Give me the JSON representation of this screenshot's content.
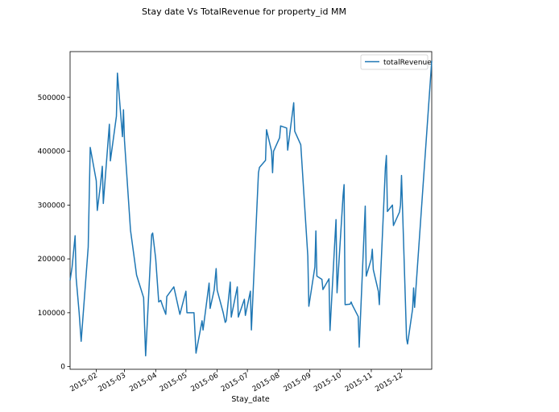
{
  "chart_data": {
    "type": "line",
    "title": "Stay date Vs TotalRevenue for property_id MM",
    "xlabel": "Stay_date",
    "ylabel": "",
    "legend": {
      "placement": "top-right",
      "entries": [
        "totalRevenue"
      ]
    },
    "grid": false,
    "xlim": [
      "2015-01-06",
      "2015-12-31"
    ],
    "ylim": [
      -5000,
      585000
    ],
    "x_tick_labels": [
      "2015-02",
      "2015-03",
      "2015-04",
      "2015-05",
      "2015-06",
      "2015-07",
      "2015-08",
      "2015-09",
      "2015-10",
      "2015-11",
      "2015-12"
    ],
    "y_tick_labels": [
      "0",
      "100000",
      "200000",
      "300000",
      "400000",
      "500000"
    ],
    "y_ticks": [
      0,
      100000,
      200000,
      300000,
      400000,
      500000
    ],
    "series": [
      {
        "name": "totalRevenue",
        "color": "#1f77b4",
        "points": [
          [
            "2015-01-06",
            160000
          ],
          [
            "2015-01-08",
            185000
          ],
          [
            "2015-01-11",
            243000
          ],
          [
            "2015-01-12",
            165000
          ],
          [
            "2015-01-15",
            100000
          ],
          [
            "2015-01-17",
            47000
          ],
          [
            "2015-01-24",
            222000
          ],
          [
            "2015-01-26",
            407000
          ],
          [
            "2015-02-01",
            345000
          ],
          [
            "2015-02-02",
            290000
          ],
          [
            "2015-02-05",
            335000
          ],
          [
            "2015-02-07",
            372000
          ],
          [
            "2015-02-08",
            303000
          ],
          [
            "2015-02-14",
            450000
          ],
          [
            "2015-02-15",
            382000
          ],
          [
            "2015-02-21",
            465000
          ],
          [
            "2015-02-22",
            545000
          ],
          [
            "2015-02-27",
            427000
          ],
          [
            "2015-02-28",
            477000
          ],
          [
            "2015-03-01",
            420000
          ],
          [
            "2015-03-07",
            253000
          ],
          [
            "2015-03-13",
            170000
          ],
          [
            "2015-03-20",
            128000
          ],
          [
            "2015-03-22",
            20000
          ],
          [
            "2015-03-28",
            245000
          ],
          [
            "2015-03-29",
            248000
          ],
          [
            "2015-04-01",
            200000
          ],
          [
            "2015-04-04",
            120000
          ],
          [
            "2015-04-06",
            123000
          ],
          [
            "2015-04-08",
            112000
          ],
          [
            "2015-04-11",
            97000
          ],
          [
            "2015-04-12",
            130000
          ],
          [
            "2015-04-19",
            148000
          ],
          [
            "2015-04-25",
            97000
          ],
          [
            "2015-05-01",
            140000
          ],
          [
            "2015-05-02",
            100000
          ],
          [
            "2015-05-09",
            100000
          ],
          [
            "2015-05-11",
            25000
          ],
          [
            "2015-05-17",
            85000
          ],
          [
            "2015-05-18",
            68000
          ],
          [
            "2015-05-24",
            155000
          ],
          [
            "2015-05-25",
            108000
          ],
          [
            "2015-05-29",
            142000
          ],
          [
            "2015-05-31",
            182000
          ],
          [
            "2015-06-01",
            142000
          ],
          [
            "2015-06-07",
            100000
          ],
          [
            "2015-06-09",
            82000
          ],
          [
            "2015-06-10",
            85000
          ],
          [
            "2015-06-14",
            157000
          ],
          [
            "2015-06-15",
            92000
          ],
          [
            "2015-06-21",
            148000
          ],
          [
            "2015-06-22",
            92000
          ],
          [
            "2015-06-28",
            125000
          ],
          [
            "2015-06-29",
            95000
          ],
          [
            "2015-07-04",
            140000
          ],
          [
            "2015-07-05",
            68000
          ],
          [
            "2015-07-12",
            360000
          ],
          [
            "2015-07-13",
            370000
          ],
          [
            "2015-07-19",
            383000
          ],
          [
            "2015-07-20",
            440000
          ],
          [
            "2015-07-25",
            400000
          ],
          [
            "2015-07-26",
            360000
          ],
          [
            "2015-07-27",
            400000
          ],
          [
            "2015-08-02",
            425000
          ],
          [
            "2015-08-03",
            447000
          ],
          [
            "2015-08-09",
            443000
          ],
          [
            "2015-08-10",
            402000
          ],
          [
            "2015-08-16",
            490000
          ],
          [
            "2015-08-17",
            437000
          ],
          [
            "2015-08-23",
            412000
          ],
          [
            "2015-08-30",
            205000
          ],
          [
            "2015-08-31",
            112000
          ],
          [
            "2015-09-06",
            185000
          ],
          [
            "2015-09-07",
            252000
          ],
          [
            "2015-09-08",
            168000
          ],
          [
            "2015-09-13",
            162000
          ],
          [
            "2015-09-14",
            143000
          ],
          [
            "2015-09-20",
            163000
          ],
          [
            "2015-09-21",
            67000
          ],
          [
            "2015-09-26",
            240000
          ],
          [
            "2015-09-27",
            273000
          ],
          [
            "2015-09-28",
            137000
          ],
          [
            "2015-10-04",
            318000
          ],
          [
            "2015-10-05",
            338000
          ],
          [
            "2015-10-06",
            115000
          ],
          [
            "2015-10-11",
            116000
          ],
          [
            "2015-10-12",
            120000
          ],
          [
            "2015-10-13",
            115000
          ],
          [
            "2015-10-19",
            93000
          ],
          [
            "2015-10-20",
            36000
          ],
          [
            "2015-10-25",
            255000
          ],
          [
            "2015-10-26",
            298000
          ],
          [
            "2015-10-27",
            168000
          ],
          [
            "2015-11-01",
            200000
          ],
          [
            "2015-11-02",
            218000
          ],
          [
            "2015-11-03",
            180000
          ],
          [
            "2015-11-08",
            140000
          ],
          [
            "2015-11-09",
            115000
          ],
          [
            "2015-11-15",
            370000
          ],
          [
            "2015-11-16",
            392000
          ],
          [
            "2015-11-17",
            288000
          ],
          [
            "2015-11-22",
            300000
          ],
          [
            "2015-11-23",
            262000
          ],
          [
            "2015-11-29",
            287000
          ],
          [
            "2015-11-30",
            300000
          ],
          [
            "2015-12-01",
            355000
          ],
          [
            "2015-12-06",
            52000
          ],
          [
            "2015-12-07",
            42000
          ],
          [
            "2015-12-12",
            107000
          ],
          [
            "2015-12-13",
            146000
          ],
          [
            "2015-12-14",
            110000
          ],
          [
            "2015-12-31",
            568000
          ]
        ]
      }
    ]
  }
}
